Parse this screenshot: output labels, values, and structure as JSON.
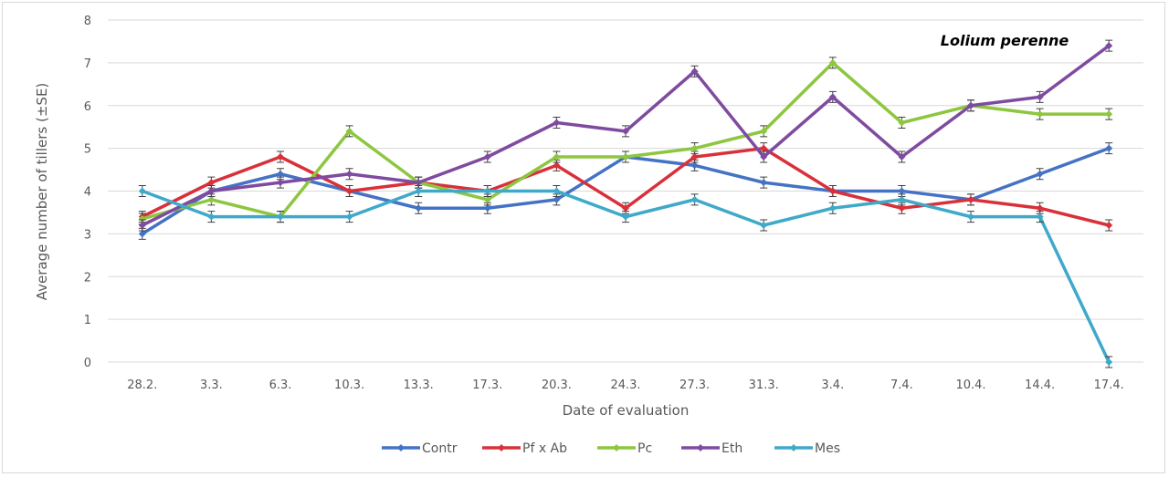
{
  "chart_data": {
    "type": "line",
    "title": "",
    "annotation": "Lolium perenne",
    "xlabel": "Date of evaluation",
    "ylabel": "Average number of tillers (±SE)",
    "ylim": [
      0,
      8
    ],
    "yticks": [
      0,
      1,
      2,
      3,
      4,
      5,
      6,
      7,
      8
    ],
    "grid": true,
    "legend_position": "bottom",
    "error_bars": true,
    "categories": [
      "28.2.",
      "3.3.",
      "6.3.",
      "10.3.",
      "13.3.",
      "17.3.",
      "20.3.",
      "24.3.",
      "27.3.",
      "31.3.",
      "3.4.",
      "7.4.",
      "10.4.",
      "14.4.",
      "17.4."
    ],
    "series": [
      {
        "name": "Contr",
        "color": "#4472c4",
        "values": [
          3.0,
          4.0,
          4.4,
          4.0,
          3.6,
          3.6,
          3.8,
          4.8,
          4.6,
          4.2,
          4.0,
          4.0,
          3.8,
          4.4,
          5.0
        ]
      },
      {
        "name": "Pf x Ab",
        "color": "#d9303a",
        "values": [
          3.4,
          4.2,
          4.8,
          4.0,
          4.2,
          4.0,
          4.6,
          3.6,
          4.8,
          5.0,
          4.0,
          3.6,
          3.8,
          3.6,
          3.2
        ]
      },
      {
        "name": "Pc",
        "color": "#8dc63f",
        "values": [
          3.35,
          3.8,
          3.4,
          5.4,
          4.2,
          3.8,
          4.8,
          4.8,
          5.0,
          5.4,
          7.0,
          5.6,
          6.0,
          5.8,
          5.8
        ]
      },
      {
        "name": "Eth",
        "color": "#7f4ba0",
        "values": [
          3.2,
          4.0,
          4.2,
          4.4,
          4.2,
          4.8,
          5.6,
          5.4,
          6.8,
          4.8,
          6.2,
          4.8,
          6.0,
          6.2,
          7.4
        ]
      },
      {
        "name": "Mes",
        "color": "#3fa9c9",
        "values": [
          4.0,
          3.4,
          3.4,
          3.4,
          4.0,
          4.0,
          4.0,
          3.4,
          3.8,
          3.2,
          3.6,
          3.8,
          3.4,
          3.4,
          0.0
        ]
      }
    ]
  }
}
